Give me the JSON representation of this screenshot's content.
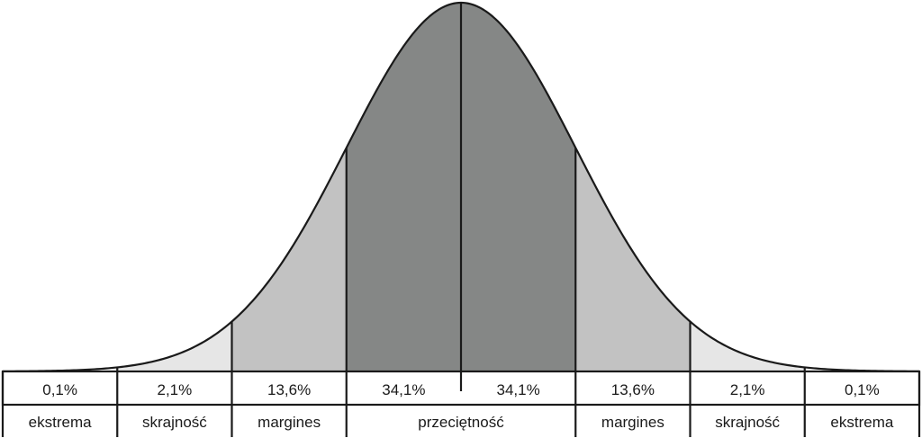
{
  "chart_data": {
    "type": "area",
    "distribution": "normal",
    "x_range": [
      -4,
      4
    ],
    "boundaries": [
      -3,
      -2,
      -1,
      0,
      1,
      2,
      3
    ],
    "segments": [
      {
        "from": -4,
        "to": -3,
        "percent": "0,1%",
        "fill": "#ffffff"
      },
      {
        "from": -3,
        "to": -2,
        "percent": "2,1%",
        "fill": "#e6e6e6"
      },
      {
        "from": -2,
        "to": -1,
        "percent": "13,6%",
        "fill": "#c2c2c2"
      },
      {
        "from": -1,
        "to": 0,
        "percent": "34,1%",
        "fill": "#858786"
      },
      {
        "from": 0,
        "to": 1,
        "percent": "34,1%",
        "fill": "#858786"
      },
      {
        "from": 1,
        "to": 2,
        "percent": "13,6%",
        "fill": "#c2c2c2"
      },
      {
        "from": 2,
        "to": 3,
        "percent": "2,1%",
        "fill": "#e6e6e6"
      },
      {
        "from": 3,
        "to": 4,
        "percent": "0,1%",
        "fill": "#ffffff"
      }
    ],
    "categories": [
      {
        "from": -4,
        "to": -3,
        "label": "ekstrema"
      },
      {
        "from": -3,
        "to": -2,
        "label": "skrajność"
      },
      {
        "from": -2,
        "to": -1,
        "label": "margines"
      },
      {
        "from": -1,
        "to": 1,
        "label": "przeciętność"
      },
      {
        "from": 1,
        "to": 2,
        "label": "margines"
      },
      {
        "from": 2,
        "to": 3,
        "label": "skrajność"
      },
      {
        "from": 3,
        "to": 4,
        "label": "ekstrema"
      }
    ],
    "line_color": "#1a1a1a"
  }
}
